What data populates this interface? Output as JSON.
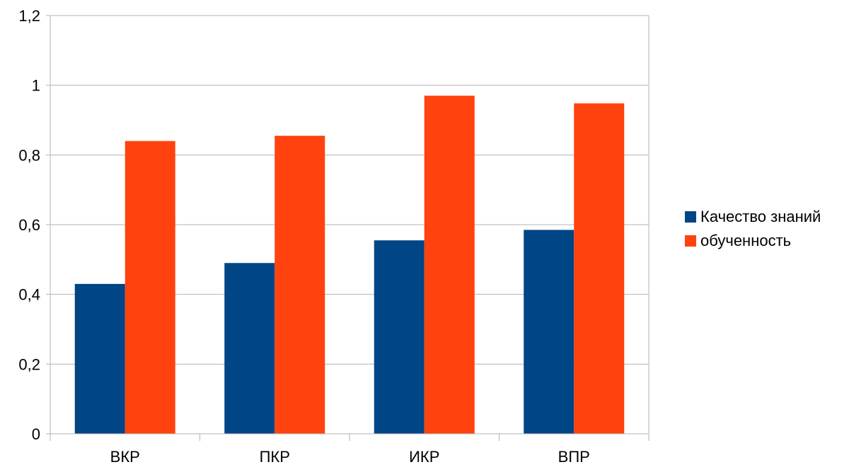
{
  "chart_data": {
    "type": "bar",
    "categories": [
      "ВКР",
      "ПКР",
      "ИКР",
      "ВПР"
    ],
    "series": [
      {
        "name": "Качество знаний",
        "values": [
          0.43,
          0.49,
          0.555,
          0.585
        ],
        "color": "#004586"
      },
      {
        "name": "обученность",
        "values": [
          0.84,
          0.855,
          0.97,
          0.948
        ],
        "color": "#ff420e"
      }
    ],
    "y_ticks": [
      "0",
      "0,2",
      "0,4",
      "0,6",
      "0,8",
      "1",
      "1,2"
    ],
    "y_tick_values": [
      0,
      0.2,
      0.4,
      0.6,
      0.8,
      1.0,
      1.2
    ],
    "ylim": [
      0,
      1.2
    ],
    "grid": true,
    "legend_position": "right",
    "gridline_color": "#b3b3b3"
  }
}
